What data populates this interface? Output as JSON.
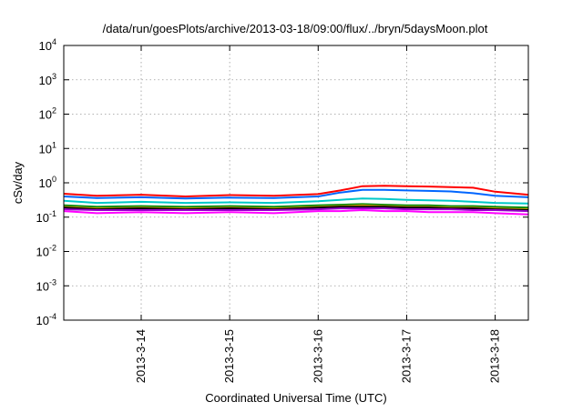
{
  "chart_data": {
    "type": "line",
    "title": "/data/run/goesPlots/archive/2013-03-18/09:00/flux/../bryn/5daysMoon.plot",
    "xlabel": "Coordinated Universal Time (UTC)",
    "ylabel": "cSv/day",
    "xlim": [
      "2013-03-13T03:00",
      "2013-03-18T09:00"
    ],
    "ylim": [
      0.0001,
      10000
    ],
    "yscale": "log",
    "grid": true,
    "legend": "none",
    "x_ticks": [
      "2013-3-14",
      "2013-3-15",
      "2013-3-16",
      "2013-3-17",
      "2013-3-18"
    ],
    "y_ticks": [
      {
        "base": "10",
        "exp": "-4"
      },
      {
        "base": "10",
        "exp": "-3"
      },
      {
        "base": "10",
        "exp": "-2"
      },
      {
        "base": "10",
        "exp": "-1"
      },
      {
        "base": "10",
        "exp": "0"
      },
      {
        "base": "10",
        "exp": "1"
      },
      {
        "base": "10",
        "exp": "2"
      },
      {
        "base": "10",
        "exp": "3"
      },
      {
        "base": "10",
        "exp": "4"
      }
    ],
    "x": [
      "2013-03-13T03:00",
      "2013-03-13T12:00",
      "2013-03-14T00:00",
      "2013-03-14T12:00",
      "2013-03-15T00:00",
      "2013-03-15T12:00",
      "2013-03-16T00:00",
      "2013-03-16T06:00",
      "2013-03-16T12:00",
      "2013-03-16T18:00",
      "2013-03-17T00:00",
      "2013-03-17T06:00",
      "2013-03-17T12:00",
      "2013-03-17T18:00",
      "2013-03-18T00:00",
      "2013-03-18T09:00"
    ],
    "series": [
      {
        "color": "#ff0000",
        "values": [
          0.48,
          0.42,
          0.45,
          0.4,
          0.44,
          0.42,
          0.47,
          0.6,
          0.8,
          0.82,
          0.8,
          0.78,
          0.75,
          0.72,
          0.55,
          0.45
        ]
      },
      {
        "color": "#0066ff",
        "values": [
          0.4,
          0.36,
          0.38,
          0.35,
          0.37,
          0.36,
          0.4,
          0.52,
          0.62,
          0.62,
          0.6,
          0.58,
          0.56,
          0.5,
          0.42,
          0.38
        ]
      },
      {
        "color": "#00c8c8",
        "values": [
          0.3,
          0.26,
          0.28,
          0.26,
          0.27,
          0.26,
          0.29,
          0.32,
          0.35,
          0.34,
          0.32,
          0.31,
          0.3,
          0.28,
          0.26,
          0.25
        ]
      },
      {
        "color": "#008800",
        "values": [
          0.22,
          0.2,
          0.21,
          0.2,
          0.21,
          0.2,
          0.22,
          0.23,
          0.24,
          0.23,
          0.22,
          0.22,
          0.21,
          0.21,
          0.2,
          0.19
        ]
      },
      {
        "color": "#c89600",
        "values": [
          0.2,
          0.18,
          0.19,
          0.18,
          0.19,
          0.18,
          0.2,
          0.21,
          0.22,
          0.21,
          0.2,
          0.2,
          0.19,
          0.19,
          0.18,
          0.17
        ]
      },
      {
        "color": "#000000",
        "values": [
          0.19,
          0.17,
          0.18,
          0.17,
          0.18,
          0.17,
          0.19,
          0.2,
          0.2,
          0.2,
          0.19,
          0.19,
          0.18,
          0.18,
          0.17,
          0.16
        ]
      },
      {
        "color": "#9900cc",
        "values": [
          0.17,
          0.16,
          0.16,
          0.16,
          0.16,
          0.16,
          0.17,
          0.18,
          0.18,
          0.18,
          0.17,
          0.17,
          0.17,
          0.16,
          0.16,
          0.15
        ]
      },
      {
        "color": "#ff00ff",
        "values": [
          0.15,
          0.13,
          0.14,
          0.13,
          0.14,
          0.13,
          0.15,
          0.15,
          0.16,
          0.15,
          0.15,
          0.14,
          0.14,
          0.14,
          0.13,
          0.12
        ]
      }
    ]
  }
}
